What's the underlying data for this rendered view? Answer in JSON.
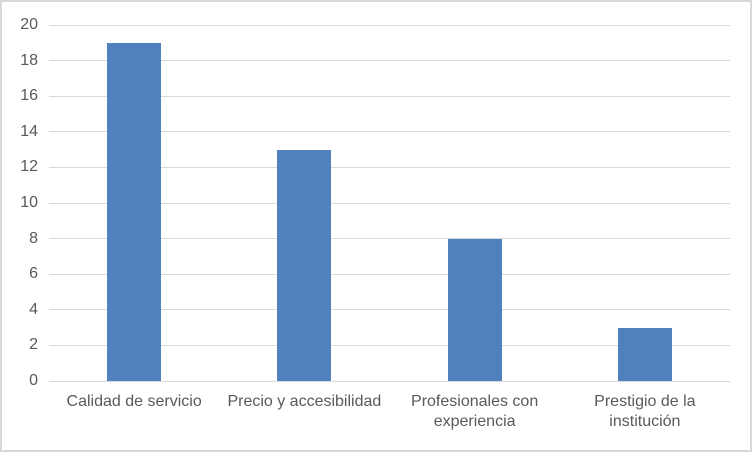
{
  "chart_data": {
    "type": "bar",
    "categories": [
      "Calidad de servicio",
      "Precio y accesibilidad",
      "Profesionales con experiencia",
      "Prestigio de la institución"
    ],
    "values": [
      19,
      13,
      8,
      3
    ],
    "title": "",
    "xlabel": "",
    "ylabel": "",
    "ylim": [
      0,
      20
    ],
    "ytick_step": 2,
    "ytick_labels": [
      "0",
      "2",
      "4",
      "6",
      "8",
      "10",
      "12",
      "14",
      "16",
      "18",
      "20"
    ],
    "grid": true,
    "legend": false,
    "colors": {
      "bar": "#4F81BD",
      "gridline": "#d9d9d9",
      "axis_line": "#d9d9d9",
      "axis_text": "#595959",
      "frame_border": "#d9d9d9",
      "background": "#ffffff"
    }
  }
}
